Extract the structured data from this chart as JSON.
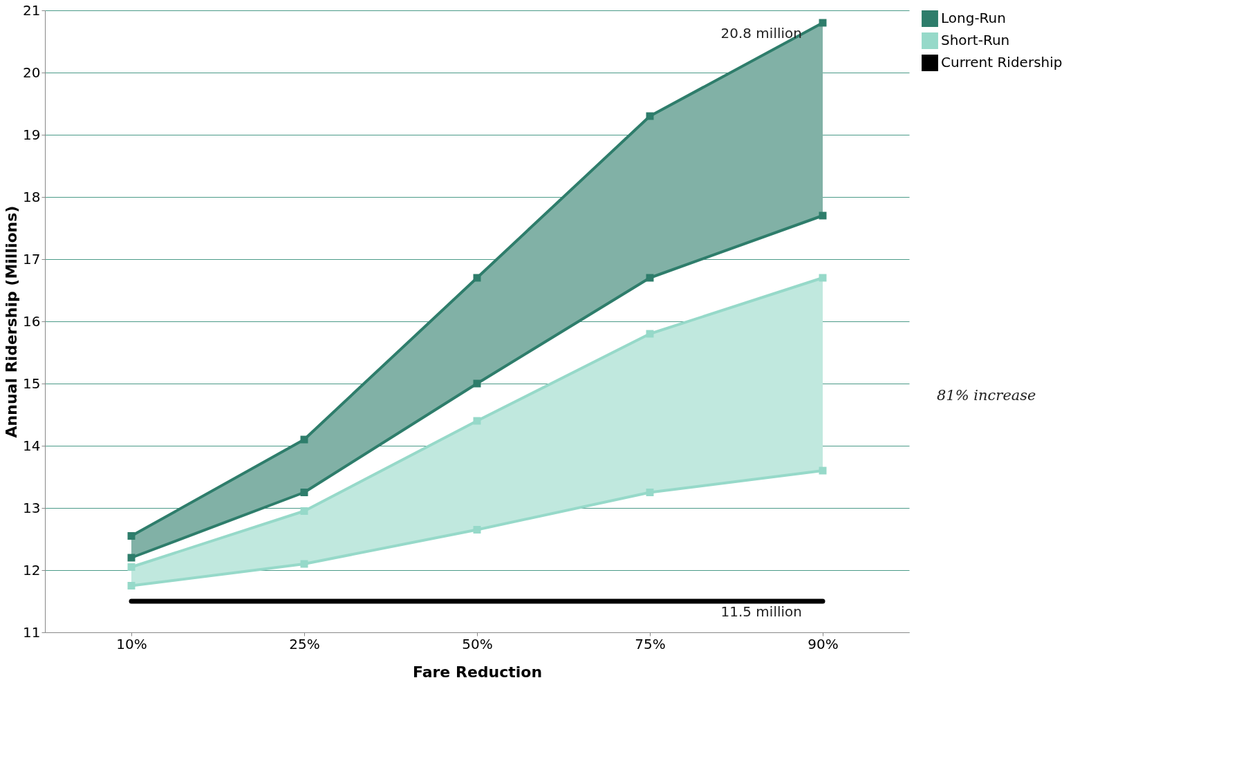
{
  "chart_data": {
    "type": "line",
    "xlabel": "Fare Reduction",
    "ylabel": "Annual Ridership (Millions)",
    "categories": [
      "10%",
      "25%",
      "50%",
      "75%",
      "90%"
    ],
    "series": [
      {
        "name": "Long-Run",
        "color": "#2e7d6b",
        "values": [
          12.55,
          14.1,
          16.7,
          19.3,
          20.8
        ],
        "lower": [
          12.2,
          13.25,
          15.0,
          16.7,
          17.7
        ],
        "upper": [
          12.55,
          14.1,
          16.7,
          19.3,
          20.8
        ],
        "marker": "square"
      },
      {
        "color": "#2e7d6b",
        "values": [
          12.2,
          13.25,
          15.0,
          16.7,
          17.7
        ],
        "marker": "square"
      },
      {
        "name": "Short-Run",
        "color": "#96d9c9",
        "values": [
          12.05,
          12.95,
          14.4,
          15.8,
          16.7
        ],
        "lower": [
          11.75,
          12.1,
          12.65,
          13.25,
          13.6
        ],
        "upper": [
          12.05,
          12.95,
          14.4,
          15.8,
          16.7
        ],
        "marker": "square"
      },
      {
        "color": "#96d9c9",
        "values": [
          11.75,
          12.1,
          12.65,
          13.25,
          13.6
        ],
        "marker": "square"
      },
      {
        "name": "Current Ridership",
        "type": "line",
        "color": "#000000",
        "values": [
          11.5,
          11.5,
          11.5,
          11.5,
          11.5
        ],
        "marker": "none"
      }
    ],
    "ylim": [
      11,
      21
    ],
    "yticks": [
      11,
      12,
      13,
      14,
      15,
      16,
      17,
      18,
      19,
      20,
      21
    ],
    "grid": "y",
    "legend": "right",
    "annotations": [
      {
        "text": "20.8 million",
        "x": "90%",
        "y": 20.8
      },
      {
        "text": "11.5 million",
        "x": "90%",
        "y": 11.5
      },
      "81% increase"
    ]
  }
}
